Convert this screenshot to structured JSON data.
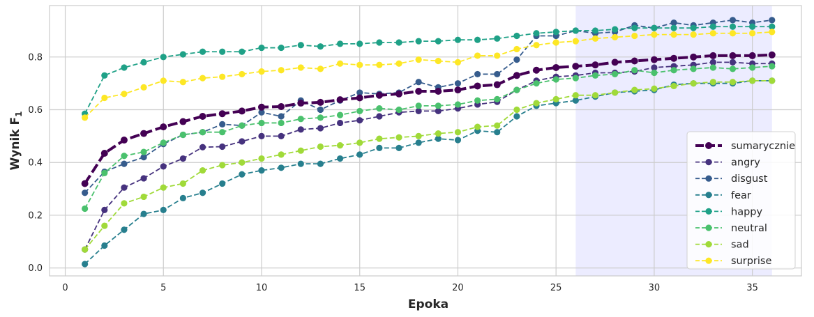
{
  "chart_data": {
    "type": "line",
    "xlabel": "Epoka",
    "ylabel": "Wynik F",
    "ylabel_subscript": "1",
    "xlim": [
      -0.8,
      37.5
    ],
    "ylim": [
      -0.03,
      0.995
    ],
    "xticks": [
      0,
      5,
      10,
      15,
      20,
      25,
      30,
      35
    ],
    "yticks": [
      0.0,
      0.2,
      0.4,
      0.6,
      0.8
    ],
    "grid": true,
    "legend_position": "lower-right",
    "highlight_region": {
      "x_start": 26,
      "x_end": 36,
      "color": "#ececff"
    },
    "x": [
      1,
      2,
      3,
      4,
      5,
      6,
      7,
      8,
      9,
      10,
      11,
      12,
      13,
      14,
      15,
      16,
      17,
      18,
      19,
      20,
      21,
      22,
      23,
      24,
      25,
      26,
      27,
      28,
      29,
      30,
      31,
      32,
      33,
      34,
      35,
      36
    ],
    "series": [
      {
        "name": "sumarycznie",
        "color": "#440154",
        "dashed": true,
        "bold": true,
        "values": [
          0.32,
          0.435,
          0.485,
          0.51,
          0.535,
          0.555,
          0.575,
          0.585,
          0.595,
          0.61,
          0.612,
          0.625,
          0.628,
          0.638,
          0.645,
          0.655,
          0.66,
          0.67,
          0.67,
          0.675,
          0.69,
          0.695,
          0.73,
          0.75,
          0.76,
          0.765,
          0.77,
          0.78,
          0.785,
          0.79,
          0.795,
          0.8,
          0.805,
          0.805,
          0.805,
          0.808
        ]
      },
      {
        "name": "angry",
        "color": "#46327e",
        "dashed": true,
        "bold": false,
        "values": [
          0.07,
          0.22,
          0.305,
          0.34,
          0.385,
          0.415,
          0.458,
          0.46,
          0.48,
          0.5,
          0.5,
          0.525,
          0.53,
          0.55,
          0.56,
          0.575,
          0.59,
          0.595,
          0.595,
          0.605,
          0.62,
          0.63,
          0.675,
          0.71,
          0.725,
          0.73,
          0.74,
          0.74,
          0.745,
          0.76,
          0.765,
          0.77,
          0.78,
          0.78,
          0.775,
          0.775
        ]
      },
      {
        "name": "disgust",
        "color": "#365c8d",
        "dashed": true,
        "bold": false,
        "values": [
          0.285,
          0.365,
          0.395,
          0.42,
          0.47,
          0.505,
          0.515,
          0.545,
          0.54,
          0.59,
          0.575,
          0.635,
          0.6,
          0.635,
          0.665,
          0.66,
          0.665,
          0.705,
          0.685,
          0.7,
          0.735,
          0.735,
          0.79,
          0.88,
          0.88,
          0.9,
          0.89,
          0.895,
          0.92,
          0.91,
          0.93,
          0.92,
          0.93,
          0.94,
          0.93,
          0.94
        ]
      },
      {
        "name": "fear",
        "color": "#277f8e",
        "dashed": true,
        "bold": false,
        "values": [
          0.015,
          0.085,
          0.145,
          0.205,
          0.22,
          0.265,
          0.285,
          0.32,
          0.355,
          0.37,
          0.38,
          0.395,
          0.395,
          0.415,
          0.43,
          0.455,
          0.455,
          0.475,
          0.49,
          0.485,
          0.52,
          0.515,
          0.575,
          0.615,
          0.625,
          0.635,
          0.65,
          0.665,
          0.67,
          0.675,
          0.695,
          0.7,
          0.7,
          0.7,
          0.71,
          0.71
        ]
      },
      {
        "name": "happy",
        "color": "#1fa187",
        "dashed": true,
        "bold": false,
        "values": [
          0.585,
          0.73,
          0.76,
          0.78,
          0.8,
          0.81,
          0.82,
          0.82,
          0.82,
          0.835,
          0.835,
          0.845,
          0.84,
          0.85,
          0.85,
          0.855,
          0.855,
          0.86,
          0.86,
          0.865,
          0.865,
          0.87,
          0.88,
          0.89,
          0.895,
          0.9,
          0.9,
          0.905,
          0.91,
          0.91,
          0.91,
          0.91,
          0.915,
          0.915,
          0.915,
          0.915
        ]
      },
      {
        "name": "neutral",
        "color": "#4ac16d",
        "dashed": true,
        "bold": false,
        "values": [
          0.225,
          0.36,
          0.425,
          0.44,
          0.475,
          0.505,
          0.515,
          0.515,
          0.54,
          0.55,
          0.55,
          0.565,
          0.57,
          0.58,
          0.595,
          0.605,
          0.6,
          0.615,
          0.615,
          0.62,
          0.635,
          0.64,
          0.675,
          0.7,
          0.715,
          0.72,
          0.73,
          0.735,
          0.75,
          0.74,
          0.75,
          0.755,
          0.76,
          0.755,
          0.76,
          0.765
        ]
      },
      {
        "name": "sad",
        "color": "#a0da39",
        "dashed": true,
        "bold": false,
        "values": [
          0.07,
          0.16,
          0.245,
          0.27,
          0.305,
          0.32,
          0.37,
          0.39,
          0.4,
          0.415,
          0.43,
          0.445,
          0.46,
          0.465,
          0.475,
          0.49,
          0.495,
          0.5,
          0.51,
          0.515,
          0.535,
          0.54,
          0.6,
          0.625,
          0.64,
          0.655,
          0.655,
          0.665,
          0.675,
          0.68,
          0.69,
          0.7,
          0.705,
          0.705,
          0.71,
          0.71
        ]
      },
      {
        "name": "surprise",
        "color": "#fde725",
        "dashed": true,
        "bold": false,
        "values": [
          0.57,
          0.645,
          0.66,
          0.685,
          0.71,
          0.705,
          0.72,
          0.725,
          0.735,
          0.745,
          0.75,
          0.76,
          0.755,
          0.775,
          0.77,
          0.77,
          0.775,
          0.79,
          0.785,
          0.78,
          0.805,
          0.805,
          0.83,
          0.845,
          0.855,
          0.86,
          0.87,
          0.875,
          0.88,
          0.885,
          0.885,
          0.885,
          0.89,
          0.89,
          0.89,
          0.895
        ]
      }
    ]
  }
}
